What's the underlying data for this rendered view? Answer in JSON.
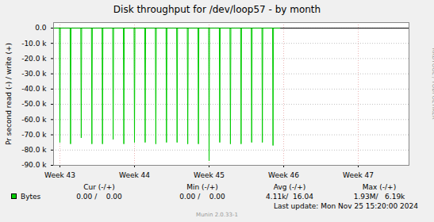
{
  "chart_data": {
    "type": "line",
    "title": "Disk throughput for /dev/loop57 - by month",
    "y_label": "Pr second read (-) / write (+)",
    "x": [
      42.92,
      42.994,
      43.0,
      43.006,
      43.137,
      43.143,
      43.149,
      43.28,
      43.286,
      43.292,
      43.423,
      43.429,
      43.435,
      43.565,
      43.571,
      43.577,
      43.708,
      43.714,
      43.72,
      43.851,
      43.857,
      43.863,
      43.994,
      44.0,
      44.006,
      44.137,
      44.143,
      44.149,
      44.28,
      44.286,
      44.292,
      44.423,
      44.429,
      44.435,
      44.565,
      44.571,
      44.577,
      44.708,
      44.714,
      44.72,
      44.851,
      44.857,
      44.863,
      44.994,
      45.0,
      45.006,
      45.137,
      45.143,
      45.149,
      45.28,
      45.286,
      45.292,
      45.423,
      45.429,
      45.435,
      45.565,
      45.571,
      45.577,
      45.708,
      45.714,
      45.72,
      45.851,
      45.857,
      45.863,
      45.95
    ],
    "series": [
      {
        "name": "Bytes",
        "color": "#00cc00",
        "values": [
          0,
          0,
          -75000,
          0,
          0,
          -76000,
          0,
          0,
          -72000,
          0,
          0,
          -76000,
          0,
          0,
          -76000,
          0,
          0,
          -73000,
          0,
          0,
          -76000,
          0,
          0,
          -75000,
          0,
          0,
          -75000,
          0,
          0,
          -76000,
          0,
          0,
          -75000,
          0,
          0,
          -75000,
          0,
          0,
          -76000,
          0,
          0,
          -76000,
          0,
          0,
          -87000,
          0,
          0,
          -75000,
          0,
          0,
          -76000,
          0,
          0,
          -76000,
          0,
          0,
          -75000,
          0,
          0,
          -75000,
          0,
          0,
          -77000,
          0,
          0
        ]
      }
    ],
    "xlim": [
      42.915,
      47.68
    ],
    "xticks": [
      {
        "value": 43,
        "label": "Week 43"
      },
      {
        "value": 44,
        "label": "Week 44"
      },
      {
        "value": 45,
        "label": "Week 45"
      },
      {
        "value": 46,
        "label": "Week 46"
      },
      {
        "value": 47,
        "label": "Week 47"
      }
    ],
    "ylim": [
      -90000,
      3600
    ],
    "yticks": [
      {
        "value": 0,
        "label": "0.0"
      },
      {
        "value": -10000,
        "label": "-10.0 k"
      },
      {
        "value": -20000,
        "label": "-20.0 k"
      },
      {
        "value": -30000,
        "label": "-30.0 k"
      },
      {
        "value": -40000,
        "label": "-40.0 k"
      },
      {
        "value": -50000,
        "label": "-50.0 k"
      },
      {
        "value": -60000,
        "label": "-60.0 k"
      },
      {
        "value": -70000,
        "label": "-70.0 k"
      },
      {
        "value": -80000,
        "label": "-80.0 k"
      },
      {
        "value": -90000,
        "label": "-90.0 k"
      }
    ],
    "grid": true,
    "summary": {
      "columns": [
        "Cur (-/+)",
        "Min (-/+)",
        "Avg (-/+)",
        "Max (-/+)"
      ],
      "rows": [
        {
          "name": "Bytes",
          "cells": [
            "0.00 /    0.00",
            "0.00 /    0.00",
            "4.11k/  16.04",
            "1.93M/   6.19k"
          ]
        }
      ]
    },
    "footer": "Last update: Mon Nov 25 15:20:00 2024",
    "credit": "Munin 2.0.33-1",
    "side_text": "RRDTOOL / TOBI OETIKER"
  }
}
